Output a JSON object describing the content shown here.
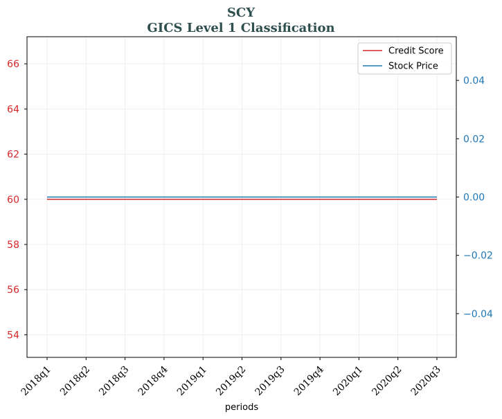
{
  "chart_data": {
    "type": "line",
    "title": "SCY",
    "subtitle": "GICS Level 1 Classification",
    "xlabel": "periods",
    "categories": [
      "2018q1",
      "2018q2",
      "2018q3",
      "2018q4",
      "2019q1",
      "2019q2",
      "2019q3",
      "2019q4",
      "2020q1",
      "2020q2",
      "2020q3"
    ],
    "left_axis": {
      "ylim": [
        53,
        67.2
      ],
      "ticks": [
        54,
        56,
        58,
        60,
        62,
        64,
        66
      ],
      "color": "#d62728"
    },
    "right_axis": {
      "ylim": [
        -0.055,
        0.055
      ],
      "ticks": [
        -0.04,
        -0.02,
        0.0,
        0.02,
        0.04
      ],
      "tick_labels": [
        "−0.04",
        "−0.02",
        "0.00",
        "0.02",
        "0.04"
      ],
      "color": "#1f77b4"
    },
    "series": [
      {
        "name": "Credit Score",
        "axis": "left",
        "color": "#d62728",
        "values": [
          60,
          60,
          60,
          60,
          60,
          60,
          60,
          60,
          60,
          60,
          60
        ]
      },
      {
        "name": "Stock Price",
        "axis": "right",
        "color": "#1f77b4",
        "values": [
          0,
          0,
          0,
          0,
          0,
          0,
          0,
          0,
          0,
          0,
          0
        ]
      }
    ],
    "grid": true,
    "legend": "top-right"
  }
}
